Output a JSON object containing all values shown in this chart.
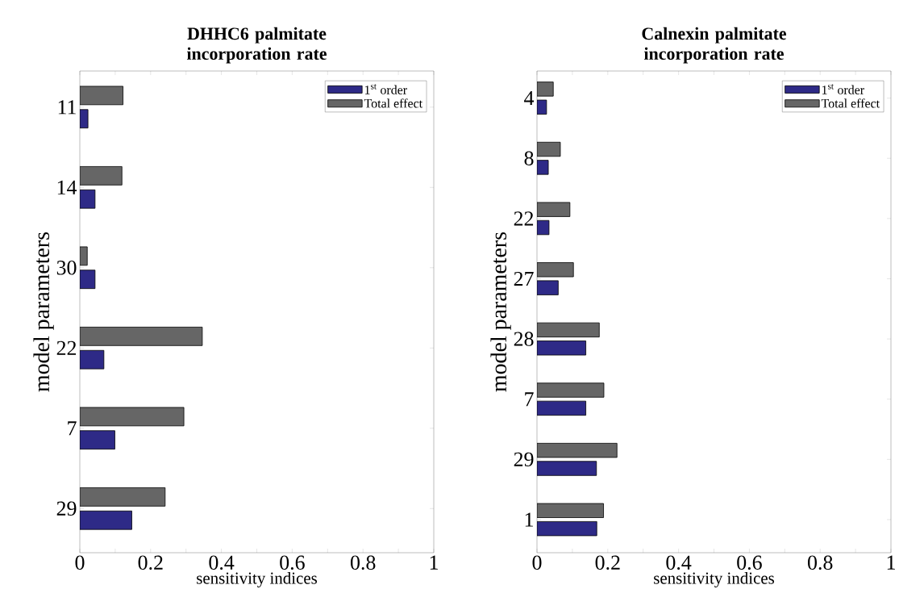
{
  "chart_data": [
    {
      "type": "bar",
      "orientation": "horizontal",
      "title": "DHHC6 palmitate incorporation rate",
      "xlabel": "sensitivity indices",
      "ylabel": "model parameters",
      "categories": [
        "11",
        "14",
        "30",
        "22",
        "7",
        "29"
      ],
      "series": [
        {
          "name": "1$^{st}$ order",
          "color": "#2e2a87",
          "values": [
            0.023,
            0.043,
            0.043,
            0.068,
            0.099,
            0.147
          ]
        },
        {
          "name": "Total effect",
          "color": "#666666",
          "values": [
            0.122,
            0.119,
            0.021,
            0.346,
            0.294,
            0.241
          ]
        }
      ],
      "xlim": [
        0,
        1
      ],
      "xticks": [
        0,
        {
          "value": 0.1,
          "label": null
        },
        0.2,
        {
          "value": 0.3,
          "label": null
        },
        0.4,
        {
          "value": 0.5,
          "label": null
        },
        0.6,
        {
          "value": 0.7,
          "label": null
        },
        0.8,
        {
          "value": 0.9,
          "label": null
        },
        1
      ],
      "legend": "top right"
    },
    {
      "type": "bar",
      "orientation": "horizontal",
      "title": "Calnexin palmitate incorporation rate",
      "xlabel": "sensitivity indices",
      "ylabel": "model parameters",
      "categories": [
        "4",
        "8",
        "22",
        "27",
        "28",
        "7",
        "29",
        "1"
      ],
      "series": [
        {
          "name": "1$^{st}$ order",
          "color": "#2e2a87",
          "values": [
            0.027,
            0.032,
            0.034,
            0.06,
            0.138,
            0.138,
            0.168,
            0.169
          ]
        },
        {
          "name": "Total effect",
          "color": "#666666",
          "values": [
            0.046,
            0.066,
            0.093,
            0.103,
            0.176,
            0.189,
            0.226,
            0.188
          ]
        }
      ],
      "xlim": [
        0,
        1
      ],
      "xticks": [
        0,
        {
          "value": 0.1,
          "label": null
        },
        0.2,
        {
          "value": 0.3,
          "label": null
        },
        0.4,
        {
          "value": 0.5,
          "label": null
        },
        0.6,
        {
          "value": 0.7,
          "label": null
        },
        0.8,
        {
          "value": 0.9,
          "label": null
        },
        1
      ],
      "legend": "top right"
    }
  ]
}
